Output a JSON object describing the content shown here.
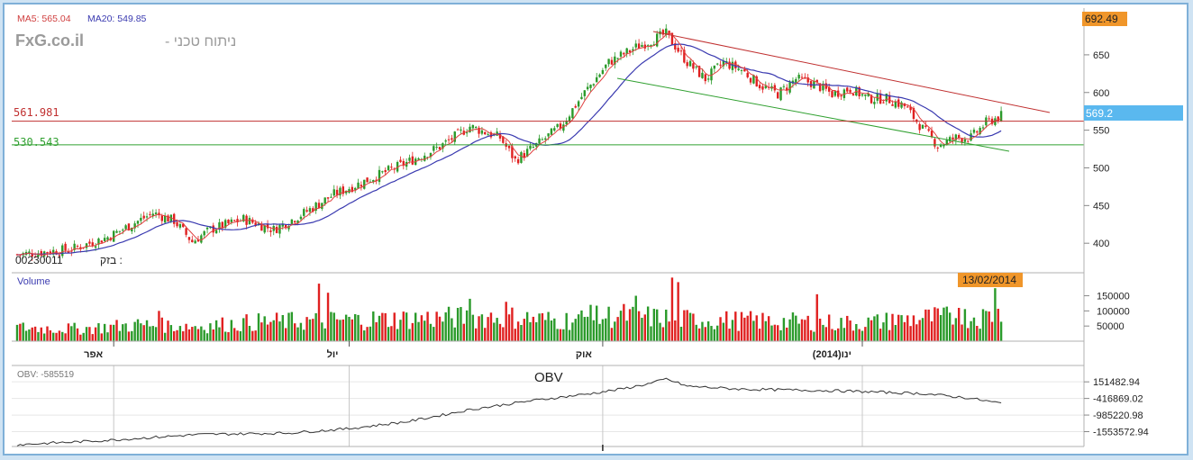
{
  "header": {
    "ma5": "MA5: 565.04",
    "ma20": "MA20: 549.85",
    "watermark_site": "FxG.co.il",
    "watermark_text": "ניתוח טכני -",
    "last_price_tag": "692.49",
    "current_price_tag": "569.2",
    "date_tag": "13/02/2014",
    "symbol": "00230011",
    "symbol_name": ": בזק"
  },
  "lines": {
    "horizontal_red": "561.981",
    "horizontal_green": "530.543"
  },
  "colors": {
    "up": "#2a9a2a",
    "down": "#e02020",
    "ma5": "#e04040",
    "ma20": "#3a3ab0",
    "resistance": "#c03030",
    "support": "#30a030",
    "price_tag": "#f0962a",
    "current_tag": "#5ab8ef"
  },
  "chart_data": [
    {
      "type": "candlestick",
      "name": "price",
      "y_ticks": [
        "650",
        "600",
        "550",
        "500",
        "450",
        "400"
      ],
      "ylim": [
        362,
        712
      ],
      "x_labels": [
        "אפר",
        "יול",
        "אוק",
        "ינו(2014)"
      ],
      "keyframes_close": [
        [
          0,
          385
        ],
        [
          18,
          392
        ],
        [
          30,
          408
        ],
        [
          38,
          425
        ],
        [
          45,
          440
        ],
        [
          52,
          430
        ],
        [
          58,
          402
        ],
        [
          64,
          418
        ],
        [
          75,
          432
        ],
        [
          85,
          418
        ],
        [
          95,
          440
        ],
        [
          105,
          465
        ],
        [
          115,
          482
        ],
        [
          128,
          505
        ],
        [
          140,
          528
        ],
        [
          150,
          555
        ],
        [
          160,
          540
        ],
        [
          165,
          510
        ],
        [
          172,
          530
        ],
        [
          180,
          555
        ],
        [
          188,
          600
        ],
        [
          196,
          640
        ],
        [
          205,
          660
        ],
        [
          215,
          678
        ],
        [
          222,
          640
        ],
        [
          228,
          618
        ],
        [
          234,
          640
        ],
        [
          240,
          630
        ],
        [
          246,
          610
        ],
        [
          252,
          598
        ],
        [
          258,
          618
        ],
        [
          264,
          612
        ],
        [
          270,
          598
        ],
        [
          276,
          605
        ],
        [
          282,
          592
        ],
        [
          288,
          592
        ],
        [
          294,
          582
        ],
        [
          300,
          552
        ],
        [
          305,
          530
        ],
        [
          311,
          540
        ],
        [
          316,
          540
        ],
        [
          321,
          560
        ],
        [
          326,
          569
        ]
      ]
    },
    {
      "type": "bar",
      "name": "Volume",
      "y_ticks": [
        "150000",
        "100000",
        "50000"
      ],
      "ylim": [
        0,
        220000
      ],
      "keyframes": [
        [
          0,
          50000
        ],
        [
          20,
          45000
        ],
        [
          40,
          60000
        ],
        [
          60,
          55000
        ],
        [
          80,
          70000
        ],
        [
          100,
          75000
        ],
        [
          120,
          80000
        ],
        [
          140,
          85000
        ],
        [
          160,
          90000
        ],
        [
          180,
          75000
        ],
        [
          200,
          95000
        ],
        [
          220,
          80000
        ],
        [
          240,
          75000
        ],
        [
          260,
          70000
        ],
        [
          280,
          65000
        ],
        [
          300,
          85000
        ],
        [
          320,
          90000
        ],
        [
          326,
          100000
        ]
      ],
      "spikes": [
        [
          47,
          100000
        ],
        [
          100,
          190000
        ],
        [
          103,
          160000
        ],
        [
          150,
          140000
        ],
        [
          162,
          130000
        ],
        [
          190,
          120000
        ],
        [
          205,
          150000
        ],
        [
          217,
          210000
        ],
        [
          219,
          195000
        ],
        [
          265,
          155000
        ],
        [
          290,
          90000
        ],
        [
          312,
          110000
        ],
        [
          324,
          175000
        ]
      ]
    },
    {
      "type": "line",
      "name": "OBV",
      "legend": "OBV: -585519",
      "title": "OBV",
      "y_ticks": [
        "151482.94",
        "-416869.02",
        "-985220.98",
        "-1553572.94"
      ],
      "ylim": [
        -2000000,
        650000
      ],
      "keyframes": [
        [
          0,
          -2000000
        ],
        [
          30,
          -1850000
        ],
        [
          60,
          -1650000
        ],
        [
          90,
          -1600000
        ],
        [
          110,
          -1450000
        ],
        [
          130,
          -1200000
        ],
        [
          150,
          -800000
        ],
        [
          170,
          -500000
        ],
        [
          190,
          -250000
        ],
        [
          200,
          -100000
        ],
        [
          210,
          100000
        ],
        [
          215,
          250000
        ],
        [
          222,
          0
        ],
        [
          240,
          -100000
        ],
        [
          270,
          -150000
        ],
        [
          300,
          -250000
        ],
        [
          315,
          -400000
        ],
        [
          326,
          -585519
        ]
      ]
    }
  ]
}
